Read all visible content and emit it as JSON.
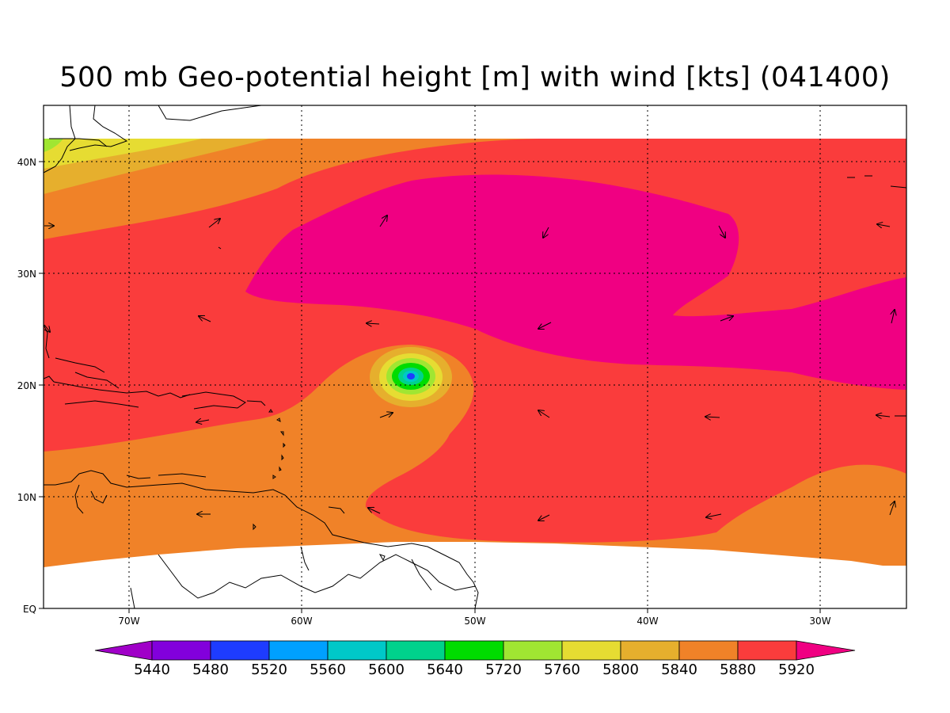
{
  "title": "500 mb Geo-potential height [m] with wind [kts] (041400)",
  "map": {
    "lon_ticks": [
      "70W",
      "60W",
      "50W",
      "40W",
      "30W"
    ],
    "lat_ticks": [
      "EQ",
      "10N",
      "20N",
      "30N",
      "40N"
    ]
  },
  "colorbar": {
    "levels": [
      "5440",
      "5480",
      "5520",
      "5560",
      "5600",
      "5640",
      "5720",
      "5760",
      "5800",
      "5840",
      "5880",
      "5920"
    ],
    "colors": [
      "#a000c8",
      "#8200dc",
      "#1e3cff",
      "#00a0ff",
      "#00c8c8",
      "#00d28c",
      "#00dc00",
      "#a0e632",
      "#e6dc32",
      "#e6af2d",
      "#f08228",
      "#fa3c3c",
      "#f00082"
    ]
  }
}
